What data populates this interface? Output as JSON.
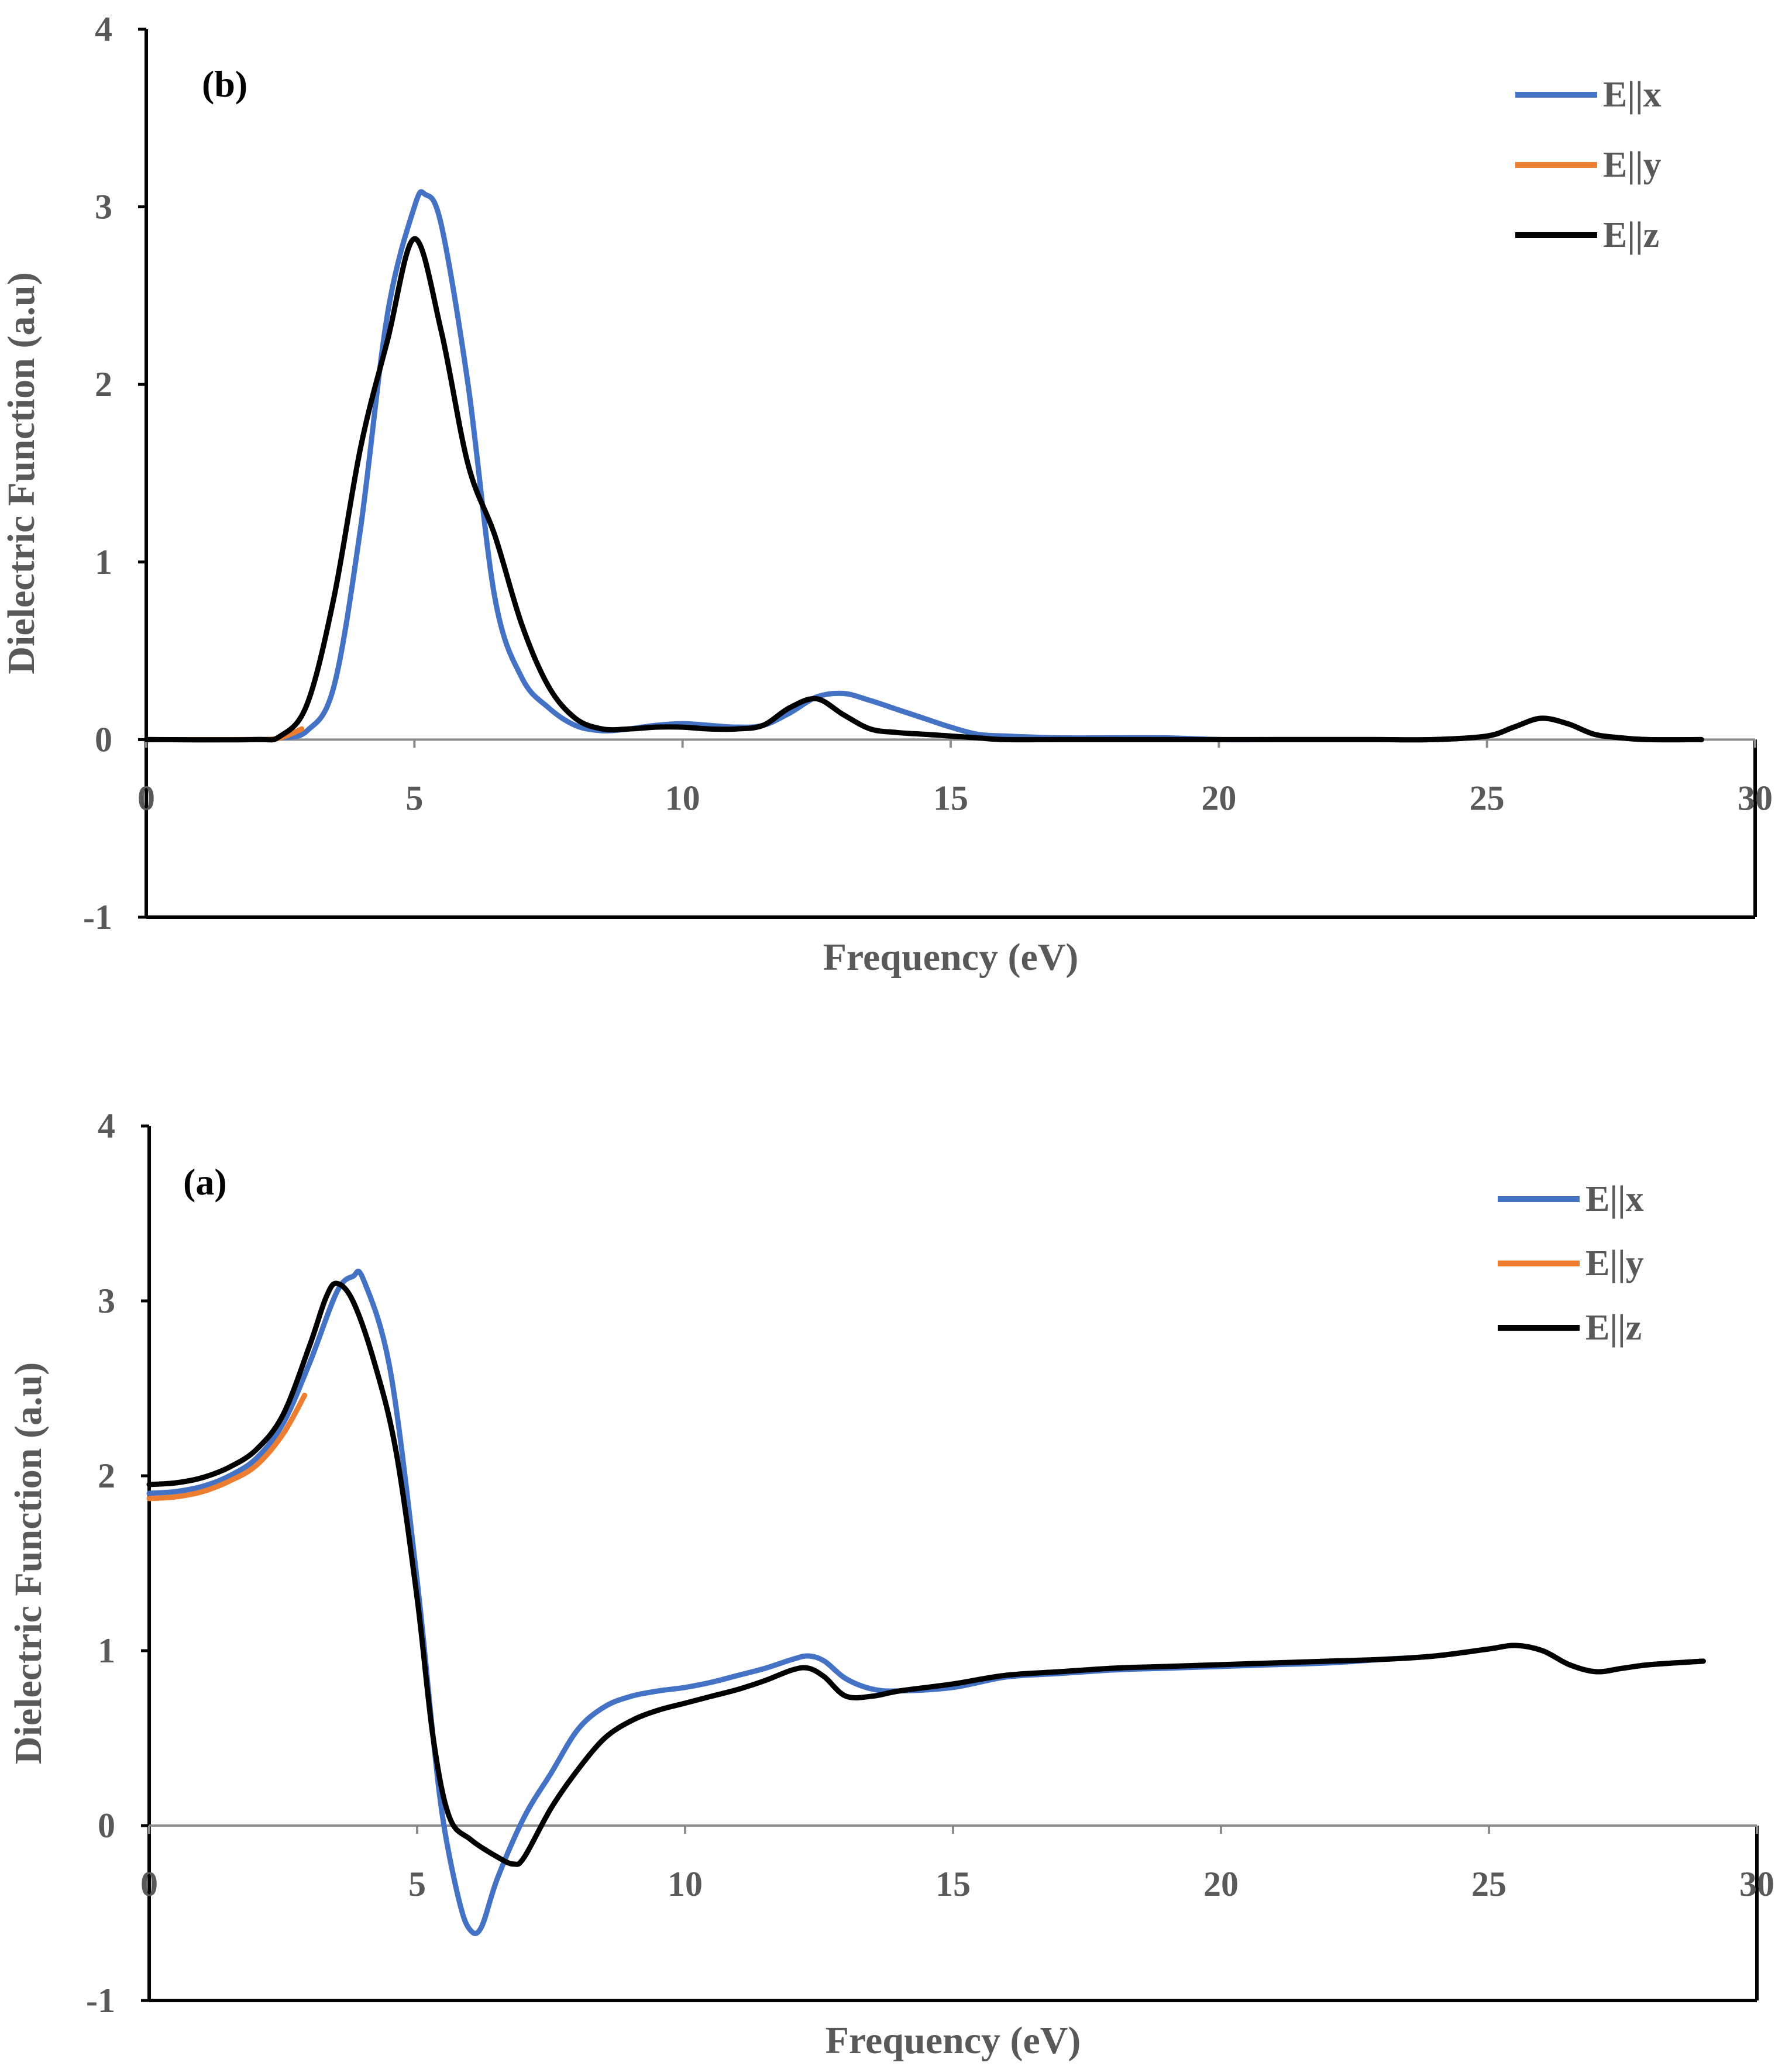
{
  "chart_data": [
    {
      "type": "line",
      "panel_label": "(b)",
      "xlabel": "Frequency (eV)",
      "ylabel": "Dielectric Function (a.u)",
      "xlim": [
        0,
        30
      ],
      "ylim": [
        -1,
        4
      ],
      "xticks": [
        "0",
        "5",
        "10",
        "15",
        "20",
        "25",
        "30"
      ],
      "yticks": [
        "-1",
        "0",
        "1",
        "2",
        "3",
        "4"
      ],
      "legend_position": "top-right",
      "grid": false,
      "series": [
        {
          "name": "E||x",
          "color": "#4472C4",
          "x": [
            0,
            2,
            2.5,
            3,
            3.5,
            4,
            4.5,
            5,
            5.2,
            5.5,
            6,
            6.5,
            7,
            7.5,
            8,
            8.5,
            9,
            9.5,
            10,
            10.5,
            11,
            11.5,
            12,
            12.5,
            13,
            13.5,
            14,
            14.5,
            15,
            15.5,
            16,
            17,
            18,
            19,
            20,
            21,
            22,
            23,
            24,
            25,
            25.5,
            26,
            26.5,
            27,
            27.5,
            28,
            29
          ],
          "y": [
            0,
            0,
            0.01,
            0.05,
            0.3,
            1.2,
            2.4,
            3.0,
            3.07,
            2.9,
            2.0,
            0.8,
            0.35,
            0.18,
            0.08,
            0.05,
            0.06,
            0.08,
            0.09,
            0.08,
            0.07,
            0.08,
            0.15,
            0.24,
            0.26,
            0.22,
            0.17,
            0.12,
            0.07,
            0.03,
            0.02,
            0.01,
            0.01,
            0.01,
            0,
            0,
            0,
            0,
            0,
            0.02,
            0.07,
            0.12,
            0.09,
            0.03,
            0.01,
            0,
            0
          ]
        },
        {
          "name": "E||y",
          "color": "#ED7D31",
          "x": [
            0,
            2,
            2.5,
            2.9
          ],
          "y": [
            0,
            0,
            0.01,
            0.06
          ]
        },
        {
          "name": "E||z",
          "color": "#000000",
          "x": [
            0,
            2,
            2.5,
            3,
            3.5,
            4,
            4.5,
            5,
            5.5,
            6,
            6.5,
            7,
            7.5,
            8,
            8.5,
            9,
            9.5,
            10,
            10.5,
            11,
            11.5,
            12,
            12.5,
            13,
            13.5,
            14,
            14.5,
            15,
            15.5,
            16,
            17,
            18,
            19,
            20,
            21,
            22,
            23,
            24,
            25,
            25.5,
            26,
            26.5,
            27,
            27.5,
            28,
            29
          ],
          "y": [
            0,
            0,
            0.02,
            0.2,
            0.8,
            1.65,
            2.25,
            2.82,
            2.3,
            1.55,
            1.15,
            0.65,
            0.3,
            0.12,
            0.06,
            0.06,
            0.07,
            0.07,
            0.06,
            0.06,
            0.08,
            0.18,
            0.23,
            0.14,
            0.06,
            0.04,
            0.03,
            0.02,
            0.01,
            0,
            0,
            0,
            0,
            0,
            0,
            0,
            0,
            0,
            0.02,
            0.07,
            0.12,
            0.09,
            0.03,
            0.01,
            0,
            0
          ]
        }
      ]
    },
    {
      "type": "line",
      "panel_label": "(a)",
      "xlabel": "Frequency (eV)",
      "ylabel": "Dielectric Function (a.u)",
      "xlim": [
        0,
        30
      ],
      "ylim": [
        -1,
        4
      ],
      "xticks": [
        "0",
        "5",
        "10",
        "15",
        "20",
        "25",
        "30"
      ],
      "yticks": [
        "-1",
        "0",
        "1",
        "2",
        "3",
        "4"
      ],
      "legend_position": "top-right",
      "grid": false,
      "series": [
        {
          "name": "E||x",
          "color": "#4472C4",
          "x": [
            0,
            0.5,
            1,
            1.5,
            2,
            2.5,
            3,
            3.5,
            3.8,
            4,
            4.5,
            5,
            5.3,
            5.5,
            5.8,
            6,
            6.2,
            6.5,
            7,
            7.5,
            8,
            8.5,
            9,
            9.5,
            10,
            10.5,
            11,
            11.5,
            12,
            12.3,
            12.6,
            13,
            13.5,
            14,
            15,
            16,
            17,
            18,
            19,
            20,
            21,
            22,
            23,
            24,
            25,
            25.5,
            26,
            26.5,
            27,
            27.5,
            28,
            29
          ],
          "y": [
            1.9,
            1.91,
            1.94,
            2.0,
            2.1,
            2.3,
            2.65,
            3.05,
            3.14,
            3.12,
            2.6,
            1.4,
            0.5,
            0.0,
            -0.45,
            -0.6,
            -0.58,
            -0.3,
            0.05,
            0.3,
            0.55,
            0.68,
            0.74,
            0.77,
            0.79,
            0.82,
            0.86,
            0.9,
            0.95,
            0.97,
            0.94,
            0.84,
            0.78,
            0.77,
            0.79,
            0.85,
            0.87,
            0.89,
            0.9,
            0.91,
            0.92,
            0.93,
            0.95,
            0.97,
            1.01,
            1.03,
            1.0,
            0.92,
            0.88,
            0.9,
            0.92,
            0.94
          ]
        },
        {
          "name": "E||y",
          "color": "#ED7D31",
          "x": [
            0,
            0.5,
            1,
            1.5,
            2,
            2.5,
            2.9
          ],
          "y": [
            1.87,
            1.88,
            1.91,
            1.97,
            2.06,
            2.24,
            2.46
          ]
        },
        {
          "name": "E||z",
          "color": "#000000",
          "x": [
            0,
            0.5,
            1,
            1.5,
            2,
            2.5,
            3,
            3.3,
            3.5,
            3.8,
            4.2,
            4.6,
            5,
            5.3,
            5.6,
            6,
            6.5,
            6.8,
            7,
            7.5,
            8,
            8.5,
            9,
            9.5,
            10,
            10.5,
            11,
            11.5,
            12,
            12.3,
            12.6,
            13,
            13.5,
            14,
            15,
            16,
            17,
            18,
            19,
            20,
            21,
            22,
            23,
            24,
            25,
            25.5,
            26,
            26.5,
            27,
            27.5,
            28,
            29
          ],
          "y": [
            1.95,
            1.96,
            1.99,
            2.05,
            2.15,
            2.35,
            2.75,
            3.02,
            3.1,
            3.0,
            2.65,
            2.15,
            1.3,
            0.5,
            0.05,
            -0.08,
            -0.18,
            -0.22,
            -0.18,
            0.1,
            0.32,
            0.5,
            0.6,
            0.66,
            0.7,
            0.74,
            0.78,
            0.83,
            0.89,
            0.9,
            0.85,
            0.74,
            0.74,
            0.77,
            0.81,
            0.86,
            0.88,
            0.9,
            0.91,
            0.92,
            0.93,
            0.94,
            0.95,
            0.97,
            1.01,
            1.03,
            1.0,
            0.92,
            0.88,
            0.9,
            0.92,
            0.94
          ]
        }
      ]
    }
  ]
}
